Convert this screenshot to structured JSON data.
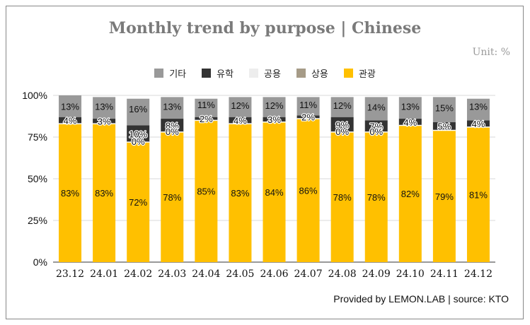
{
  "header": {
    "title": "Monthly trend by purpose | Chinese",
    "unit": "Unit: %"
  },
  "footer": {
    "source": "Provided by LEMON.LAB | source: KTO"
  },
  "chart_data": {
    "type": "bar",
    "stacked": true,
    "title": "Monthly trend by purpose | Chinese",
    "categories": [
      "23.12",
      "24.01",
      "24.02",
      "24.03",
      "24.04",
      "24.05",
      "24.06",
      "24.07",
      "24.08",
      "24.09",
      "24.10",
      "24.11",
      "24.12"
    ],
    "y_ticks": [
      "0%",
      "25%",
      "50%",
      "75%",
      "100%"
    ],
    "ylim": [
      0,
      100
    ],
    "legend": "top-center",
    "grid": true,
    "series": [
      {
        "name": "관광",
        "color": "#FFC000",
        "values": [
          83,
          83,
          72,
          78,
          85,
          83,
          84,
          86,
          78,
          78,
          82,
          79,
          81
        ]
      },
      {
        "name": "상용",
        "color": "#A69B87",
        "values": [
          0,
          0,
          0,
          0,
          0,
          0,
          0,
          0,
          0,
          0,
          0,
          0,
          0
        ]
      },
      {
        "name": "공용",
        "color": "#EDEDED",
        "values": [
          0,
          0,
          0,
          0,
          0,
          0,
          0,
          0,
          0,
          0,
          0,
          0,
          0
        ]
      },
      {
        "name": "유학",
        "color": "#333333",
        "values": [
          4,
          3,
          10,
          8,
          2,
          4,
          3,
          2,
          9,
          7,
          4,
          5,
          4
        ]
      },
      {
        "name": "기타",
        "color": "#999999",
        "values": [
          13,
          13,
          16,
          13,
          11,
          12,
          12,
          11,
          12,
          14,
          13,
          15,
          13
        ]
      }
    ],
    "legend_order": [
      "기타",
      "유학",
      "공용",
      "상용",
      "관광"
    ]
  }
}
